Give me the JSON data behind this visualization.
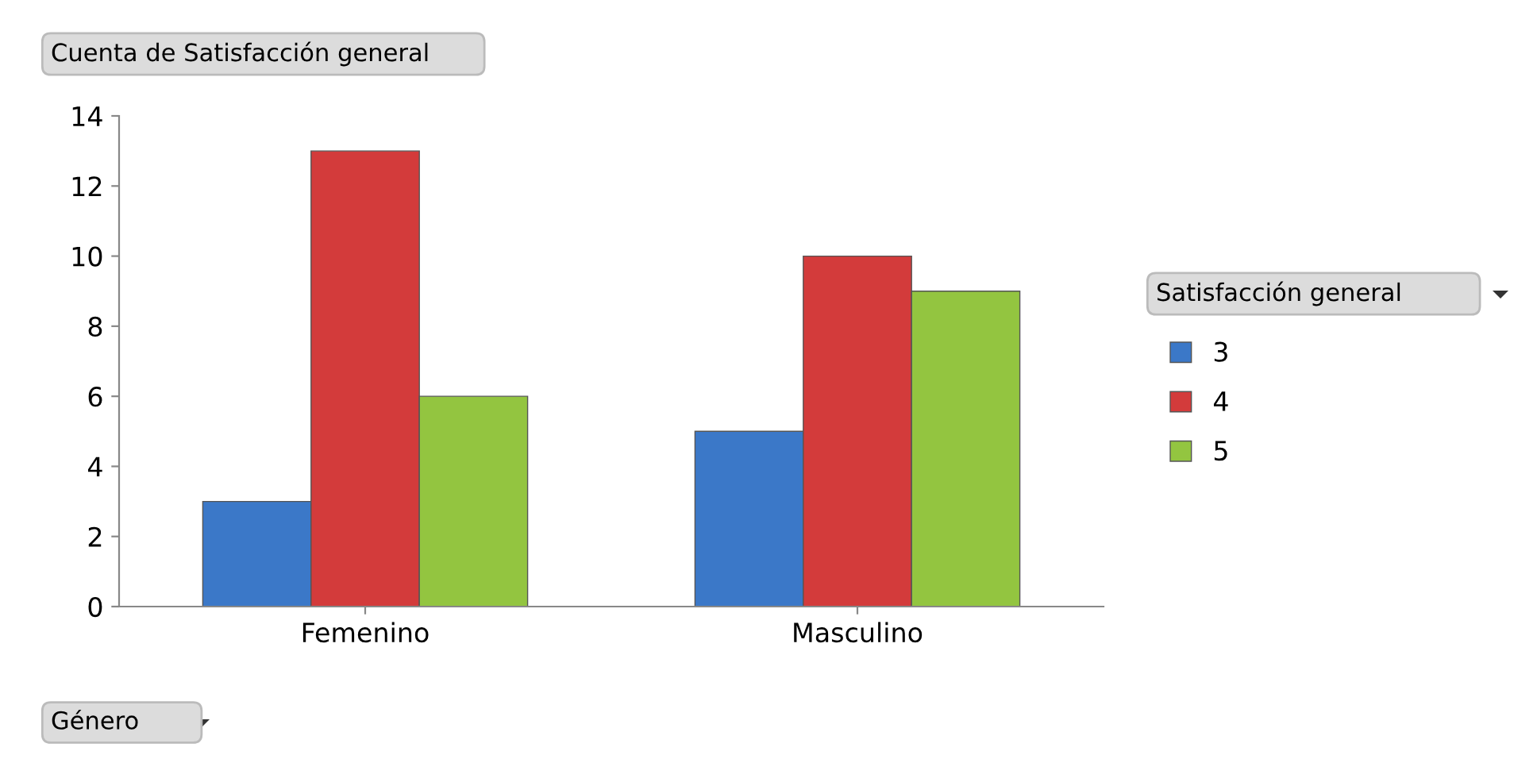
{
  "chart_data": {
    "type": "bar",
    "title": "Cuenta de Satisfacción general",
    "xlabel": "Género",
    "legend_title": "Satisfacción general",
    "categories": [
      "Femenino",
      "Masculino"
    ],
    "series": [
      {
        "name": "3",
        "color": "#3b78c8",
        "values": [
          3,
          5
        ]
      },
      {
        "name": "4",
        "color": "#d33b3b",
        "values": [
          13,
          10
        ]
      },
      {
        "name": "5",
        "color": "#93c540",
        "values": [
          6,
          9
        ]
      }
    ],
    "ylim": [
      0,
      14
    ],
    "yticks": [
      0,
      2,
      4,
      6,
      8,
      10,
      12,
      14
    ],
    "grid": false,
    "legend": "right"
  }
}
